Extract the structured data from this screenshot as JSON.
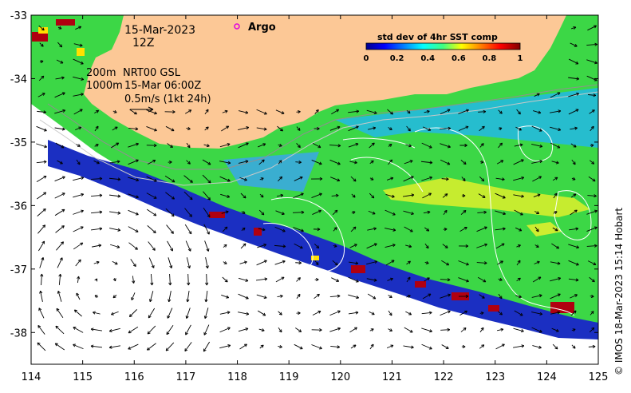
{
  "map": {
    "date": "15-Mar-2023",
    "time": "12Z",
    "argo_label": "Argo",
    "line_200m": "200m",
    "line_1000m": "1000m",
    "product": "NRT00 GSL",
    "product_time": "15-Mar 06:00Z",
    "vector_scale": "0.5m/s (1kt 24h)",
    "credit": "© IMOS 18-Mar-2023 15:14 Hobart",
    "colors": {
      "land": "#fcc896",
      "argo_marker": "#e000e0",
      "arrow": "#000000",
      "contour": "#ffffff"
    }
  },
  "colorbar": {
    "title": "std dev of 4hr SST comp",
    "ticks": [
      "0",
      "0.2",
      "0.4",
      "0.6",
      "0.8",
      "1"
    ],
    "colormap": "jet"
  },
  "axes": {
    "x_ticks": [
      "114",
      "115",
      "116",
      "117",
      "118",
      "119",
      "120",
      "121",
      "122",
      "123",
      "124",
      "125"
    ],
    "y_ticks": [
      "-33",
      "-34",
      "-35",
      "-36",
      "-37",
      "-38"
    ],
    "xlim": [
      114,
      125
    ],
    "ylim": [
      -38.5,
      -33
    ]
  }
}
